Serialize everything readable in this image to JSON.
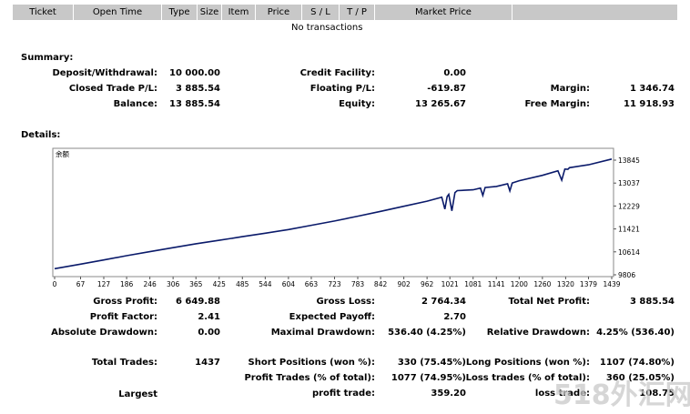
{
  "header": {
    "columns": [
      "Ticket",
      "Open Time",
      "Type",
      "Size",
      "Item",
      "Price",
      "S / L",
      "T / P",
      "Market Price"
    ],
    "empty_text": "No transactions"
  },
  "summary": {
    "title": "Summary:",
    "deposit_label": "Deposit/Withdrawal:",
    "deposit_value": "10 000.00",
    "closed_label": "Closed Trade P/L:",
    "closed_value": "3 885.54",
    "balance_label": "Balance:",
    "balance_value": "13 885.54",
    "credit_label": "Credit Facility:",
    "credit_value": "0.00",
    "floating_label": "Floating P/L:",
    "floating_value": "-619.87",
    "equity_label": "Equity:",
    "equity_value": "13 265.67",
    "margin_label": "Margin:",
    "margin_value": "1 346.74",
    "free_margin_label": "Free Margin:",
    "free_margin_value": "11 918.93"
  },
  "details": {
    "title": "Details:",
    "gross_profit_label": "Gross Profit:",
    "gross_profit_value": "6 649.88",
    "gross_loss_label": "Gross Loss:",
    "gross_loss_value": "2 764.34",
    "total_net_label": "Total Net Profit:",
    "total_net_value": "3 885.54",
    "profit_factor_label": "Profit Factor:",
    "profit_factor_value": "2.41",
    "expected_payoff_label": "Expected Payoff:",
    "expected_payoff_value": "2.70",
    "abs_dd_label": "Absolute Drawdown:",
    "abs_dd_value": "0.00",
    "max_dd_label": "Maximal Drawdown:",
    "max_dd_value": "536.40 (4.25%)",
    "rel_dd_label": "Relative Drawdown:",
    "rel_dd_value": "4.25% (536.40)",
    "total_trades_label": "Total Trades:",
    "total_trades_value": "1437",
    "short_label": "Short Positions (won %):",
    "short_value": "330 (75.45%)",
    "long_label": "Long Positions (won %):",
    "long_value": "1107 (74.80%)",
    "profit_trades_label": "Profit Trades (% of total):",
    "profit_trades_value": "1077 (74.95%)",
    "loss_trades_label": "Loss trades (% of total):",
    "loss_trades_value": "360 (25.05%)",
    "largest_label": "Largest",
    "largest_profit_label": "profit trade:",
    "largest_profit_value": "359.20",
    "largest_loss_label": "loss trade:",
    "largest_loss_value": "108.75"
  },
  "chart_data": {
    "type": "line",
    "title": "余额",
    "x_ticks": [
      0,
      67,
      127,
      186,
      246,
      306,
      365,
      425,
      485,
      544,
      604,
      663,
      723,
      783,
      842,
      902,
      962,
      1021,
      1081,
      1141,
      1200,
      1260,
      1320,
      1379,
      1439
    ],
    "y_ticks": [
      9806,
      10614,
      11421,
      12229,
      13037,
      13845
    ],
    "xlim": [
      0,
      1439
    ],
    "ylim": [
      9806,
      13845
    ],
    "grid": false,
    "series": [
      {
        "color": "#0a1a6a",
        "x": [
          0,
          67,
          127,
          186,
          246,
          306,
          365,
          425,
          485,
          544,
          604,
          663,
          723,
          783,
          842,
          902,
          962,
          1000,
          1008,
          1014,
          1018,
          1026,
          1034,
          1040,
          1081,
          1100,
          1106,
          1112,
          1141,
          1170,
          1176,
          1182,
          1200,
          1260,
          1300,
          1310,
          1318,
          1326,
          1330,
          1379,
          1439
        ],
        "y": [
          10020,
          10180,
          10330,
          10480,
          10620,
          10760,
          10900,
          11020,
          11150,
          11270,
          11400,
          11550,
          11700,
          11870,
          12040,
          12220,
          12400,
          12540,
          12120,
          12560,
          12640,
          12060,
          12700,
          12770,
          12800,
          12860,
          12600,
          12880,
          12920,
          13010,
          12760,
          13040,
          13120,
          13310,
          13470,
          13140,
          13530,
          13520,
          13580,
          13680,
          13885
        ]
      }
    ]
  },
  "watermark": "518外汇网"
}
